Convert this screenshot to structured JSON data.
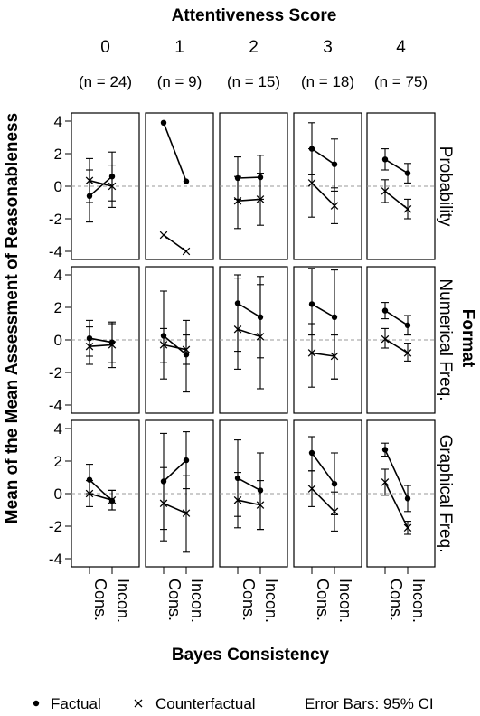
{
  "chart_data": {
    "type": "line",
    "title": "Attentiveness Score",
    "xlabel": "Bayes Consistency",
    "ylabel": "Mean of the Mean Assessment of Reasonableness",
    "right_label": "Format",
    "ylim": [
      -4.5,
      4.5
    ],
    "yticks": [
      4,
      2,
      0,
      -2,
      -4
    ],
    "x_categories": [
      "Cons.",
      "Incon."
    ],
    "columns": [
      {
        "label": "0",
        "n": "(n = 24)"
      },
      {
        "label": "1",
        "n": "(n = 9)"
      },
      {
        "label": "2",
        "n": "(n = 15)"
      },
      {
        "label": "3",
        "n": "(n = 18)"
      },
      {
        "label": "4",
        "n": "(n = 75)"
      }
    ],
    "rows": [
      "Probability",
      "Numerical Freq.",
      "Graphical Freq."
    ],
    "legend": {
      "factual_label": "Factual",
      "counterfactual_label": "Counterfactual",
      "error_note": "Error Bars: 95% CI"
    },
    "series_names": [
      "Factual",
      "Counterfactual"
    ],
    "panels": [
      {
        "row": 0,
        "col": 0,
        "factual": {
          "mean": [
            -0.6,
            0.6
          ],
          "lo": [
            -2.2,
            -0.9
          ],
          "hi": [
            1.0,
            2.1
          ]
        },
        "counterfactual": {
          "mean": [
            0.35,
            0.0
          ],
          "lo": [
            -1.0,
            -1.3
          ],
          "hi": [
            1.7,
            1.3
          ]
        }
      },
      {
        "row": 0,
        "col": 1,
        "factual": {
          "mean": [
            3.9,
            0.3
          ],
          "lo": [
            null,
            null
          ],
          "hi": [
            null,
            null
          ]
        },
        "counterfactual": {
          "mean": [
            -3.0,
            -4.0
          ],
          "lo": [
            null,
            null
          ],
          "hi": [
            null,
            null
          ]
        }
      },
      {
        "row": 0,
        "col": 2,
        "factual": {
          "mean": [
            0.5,
            0.55
          ],
          "lo": [
            -0.8,
            -0.8
          ],
          "hi": [
            1.8,
            1.9
          ]
        },
        "counterfactual": {
          "mean": [
            -0.9,
            -0.8
          ],
          "lo": [
            -2.6,
            -2.4
          ],
          "hi": [
            0.6,
            0.8
          ]
        }
      },
      {
        "row": 0,
        "col": 3,
        "factual": {
          "mean": [
            2.3,
            1.35
          ],
          "lo": [
            0.7,
            -0.3
          ],
          "hi": [
            3.9,
            2.9
          ]
        },
        "counterfactual": {
          "mean": [
            0.2,
            -1.2
          ],
          "lo": [
            -1.9,
            -2.3
          ],
          "hi": [
            2.3,
            -0.1
          ]
        }
      },
      {
        "row": 0,
        "col": 4,
        "factual": {
          "mean": [
            1.65,
            0.8
          ],
          "lo": [
            1.0,
            0.2
          ],
          "hi": [
            2.3,
            1.4
          ]
        },
        "counterfactual": {
          "mean": [
            -0.3,
            -1.4
          ],
          "lo": [
            -1.0,
            -2.0
          ],
          "hi": [
            0.4,
            -0.8
          ]
        }
      },
      {
        "row": 1,
        "col": 0,
        "factual": {
          "mean": [
            0.1,
            -0.15
          ],
          "lo": [
            -1.0,
            -1.4
          ],
          "hi": [
            1.2,
            1.1
          ]
        },
        "counterfactual": {
          "mean": [
            -0.4,
            -0.3
          ],
          "lo": [
            -1.5,
            -1.7
          ],
          "hi": [
            0.8,
            1.0
          ]
        }
      },
      {
        "row": 1,
        "col": 1,
        "factual": {
          "mean": [
            0.25,
            -0.9
          ],
          "lo": [
            -2.4,
            -3.2
          ],
          "hi": [
            3.0,
            1.2
          ]
        },
        "counterfactual": {
          "mean": [
            -0.3,
            -0.6
          ],
          "lo": [
            -1.4,
            -1.5
          ],
          "hi": [
            0.7,
            0.3
          ]
        }
      },
      {
        "row": 1,
        "col": 2,
        "factual": {
          "mean": [
            2.25,
            1.4
          ],
          "lo": [
            -1.8,
            -1.1
          ],
          "hi": [
            4.0,
            3.9
          ]
        },
        "counterfactual": {
          "mean": [
            0.65,
            0.2
          ],
          "lo": [
            -0.7,
            -3.0
          ],
          "hi": [
            3.8,
            3.4
          ]
        }
      },
      {
        "row": 1,
        "col": 3,
        "factual": {
          "mean": [
            2.2,
            1.4
          ],
          "lo": [
            0.3,
            -2.4
          ],
          "hi": [
            4.4,
            4.3
          ]
        },
        "counterfactual": {
          "mean": [
            -0.8,
            -1.0
          ],
          "lo": [
            -2.9,
            -2.4
          ],
          "hi": [
            1.0,
            0.3
          ]
        }
      },
      {
        "row": 1,
        "col": 4,
        "factual": {
          "mean": [
            1.8,
            0.9
          ],
          "lo": [
            1.3,
            0.3
          ],
          "hi": [
            2.3,
            1.5
          ]
        },
        "counterfactual": {
          "mean": [
            0.05,
            -0.8
          ],
          "lo": [
            -0.5,
            -1.3
          ],
          "hi": [
            0.7,
            -0.2
          ]
        }
      },
      {
        "row": 2,
        "col": 0,
        "factual": {
          "mean": [
            0.85,
            -0.45
          ],
          "lo": [
            0.0,
            -1.0
          ],
          "hi": [
            1.8,
            0.2
          ]
        },
        "counterfactual": {
          "mean": [
            0.0,
            -0.4
          ],
          "lo": [
            -0.8,
            -1.0
          ],
          "hi": [
            0.8,
            0.2
          ]
        }
      },
      {
        "row": 2,
        "col": 1,
        "factual": {
          "mean": [
            0.75,
            2.05
          ],
          "lo": [
            -2.2,
            0.3
          ],
          "hi": [
            3.7,
            3.8
          ]
        },
        "counterfactual": {
          "mean": [
            -0.6,
            -1.2
          ],
          "lo": [
            -2.9,
            -3.6
          ],
          "hi": [
            1.6,
            1.1
          ]
        }
      },
      {
        "row": 2,
        "col": 2,
        "factual": {
          "mean": [
            0.95,
            0.2
          ],
          "lo": [
            -1.4,
            -2.2
          ],
          "hi": [
            3.3,
            2.5
          ]
        },
        "counterfactual": {
          "mean": [
            -0.4,
            -0.7
          ],
          "lo": [
            -2.1,
            -2.2
          ],
          "hi": [
            1.3,
            0.8
          ]
        }
      },
      {
        "row": 2,
        "col": 3,
        "factual": {
          "mean": [
            2.5,
            0.6
          ],
          "lo": [
            1.4,
            -1.3
          ],
          "hi": [
            3.5,
            2.5
          ]
        },
        "counterfactual": {
          "mean": [
            0.3,
            -1.1
          ],
          "lo": [
            -0.8,
            -2.3
          ],
          "hi": [
            1.4,
            0.1
          ]
        }
      },
      {
        "row": 2,
        "col": 4,
        "factual": {
          "mean": [
            2.7,
            -0.3
          ],
          "lo": [
            2.3,
            -1.1
          ],
          "hi": [
            3.1,
            0.5
          ]
        },
        "counterfactual": {
          "mean": [
            0.7,
            -2.1
          ],
          "lo": [
            -0.1,
            -2.5
          ],
          "hi": [
            1.5,
            -1.7
          ]
        }
      }
    ]
  }
}
